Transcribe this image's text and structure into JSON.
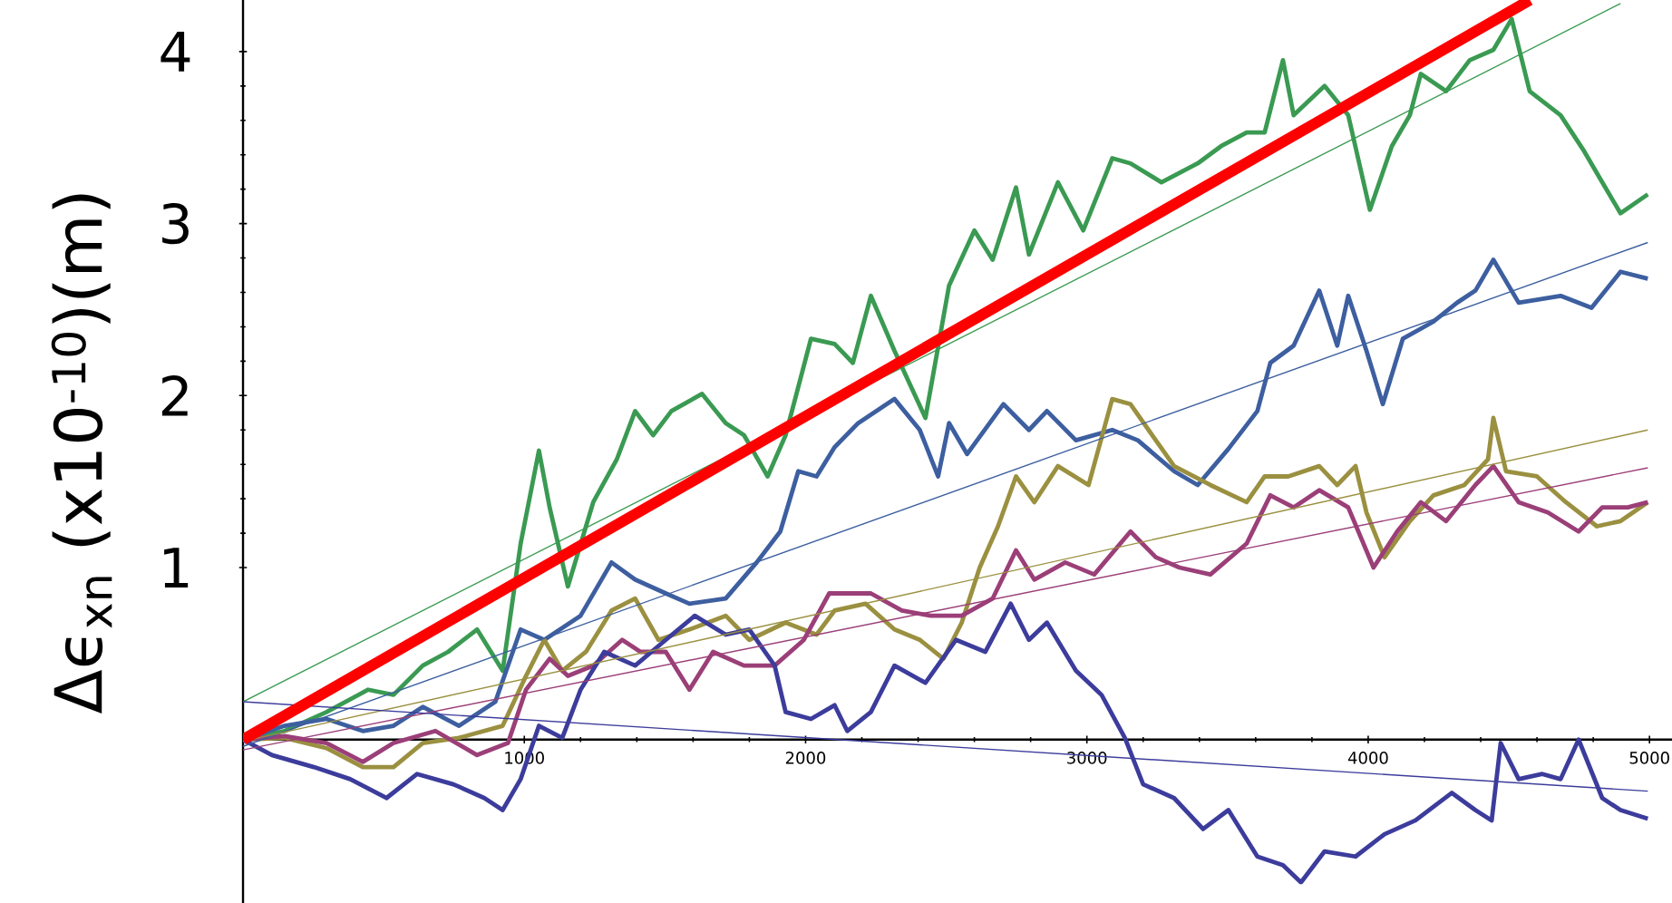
{
  "chart_data": {
    "type": "line",
    "ylabel": "Δϵ$_{xn}$ (x10$^{-10}$)(m)",
    "xlim": [
      0,
      5080
    ],
    "ylim": [
      -0.95,
      4.3
    ],
    "xticks": [
      1000,
      2000,
      3000,
      4000,
      5000
    ],
    "yticks": [
      1,
      2,
      3,
      4
    ],
    "marker": "none",
    "line_style": "solid",
    "series": [
      {
        "color": "#3a9a52",
        "x": [
          0,
          148,
          297,
          445,
          535,
          639,
          729,
          832,
          923,
          987,
          1052,
          1090,
          1155,
          1245,
          1329,
          1394,
          1458,
          1523,
          1632,
          1716,
          1781,
          1865,
          1929,
          2019,
          2103,
          2168,
          2232,
          2316,
          2426,
          2510,
          2600,
          2665,
          2748,
          2794,
          2897,
          2987,
          3090,
          3155,
          3265,
          3394,
          3477,
          3568,
          3632,
          3697,
          3735,
          3845,
          3929,
          4006,
          4084,
          4148,
          4187,
          4277,
          4361,
          4445,
          4510,
          4574,
          4684,
          4768,
          4832,
          4897,
          4994
        ],
        "values": [
          0,
          0.05,
          0.16,
          0.29,
          0.26,
          0.43,
          0.51,
          0.64,
          0.4,
          1.14,
          1.68,
          1.35,
          0.89,
          1.38,
          1.63,
          1.91,
          1.77,
          1.91,
          2.01,
          1.84,
          1.77,
          1.53,
          1.77,
          2.33,
          2.3,
          2.19,
          2.58,
          2.26,
          1.87,
          2.64,
          2.96,
          2.79,
          3.21,
          2.82,
          3.24,
          2.96,
          3.38,
          3.35,
          3.24,
          3.35,
          3.45,
          3.53,
          3.53,
          3.95,
          3.63,
          3.8,
          3.63,
          3.08,
          3.45,
          3.63,
          3.87,
          3.77,
          3.95,
          4.01,
          4.19,
          3.77,
          3.63,
          3.42,
          3.24,
          3.06,
          3.17
        ]
      },
      {
        "color": "#3d5fa0",
        "x": [
          0,
          148,
          297,
          426,
          535,
          639,
          768,
          897,
          987,
          1071,
          1200,
          1310,
          1394,
          1503,
          1587,
          1716,
          1826,
          1910,
          1974,
          2039,
          2103,
          2187,
          2316,
          2406,
          2471,
          2510,
          2574,
          2703,
          2794,
          2858,
          2961,
          3090,
          3181,
          3310,
          3394,
          3503,
          3606,
          3652,
          3735,
          3826,
          3890,
          3929,
          3994,
          4052,
          4123,
          4232,
          4316,
          4381,
          4445,
          4535,
          4684,
          4794,
          4897,
          4994
        ],
        "values": [
          0,
          0.08,
          0.12,
          0.05,
          0.08,
          0.19,
          0.08,
          0.22,
          0.64,
          0.58,
          0.72,
          1.03,
          0.93,
          0.85,
          0.79,
          0.82,
          1.03,
          1.21,
          1.56,
          1.53,
          1.7,
          1.84,
          1.98,
          1.8,
          1.53,
          1.84,
          1.66,
          1.95,
          1.8,
          1.91,
          1.74,
          1.8,
          1.74,
          1.56,
          1.48,
          1.69,
          1.91,
          2.19,
          2.29,
          2.61,
          2.29,
          2.58,
          2.26,
          1.95,
          2.33,
          2.43,
          2.54,
          2.61,
          2.79,
          2.54,
          2.58,
          2.51,
          2.72,
          2.68
        ]
      },
      {
        "color": "#9a9040",
        "x": [
          0,
          148,
          297,
          426,
          535,
          639,
          768,
          923,
          1006,
          1071,
          1135,
          1219,
          1310,
          1394,
          1477,
          1587,
          1716,
          1800,
          1929,
          2039,
          2103,
          2213,
          2316,
          2406,
          2490,
          2555,
          2619,
          2684,
          2748,
          2813,
          2897,
          3006,
          3090,
          3155,
          3245,
          3310,
          3439,
          3568,
          3632,
          3716,
          3826,
          3890,
          3955,
          3994,
          4058,
          4148,
          4232,
          4342,
          4426,
          4445,
          4490,
          4600,
          4703,
          4813,
          4897,
          4994
        ],
        "values": [
          0,
          0.01,
          -0.05,
          -0.16,
          -0.16,
          -0.02,
          0.01,
          0.08,
          0.37,
          0.58,
          0.4,
          0.51,
          0.75,
          0.82,
          0.58,
          0.64,
          0.72,
          0.58,
          0.68,
          0.61,
          0.75,
          0.79,
          0.64,
          0.58,
          0.47,
          0.68,
          1.0,
          1.24,
          1.53,
          1.38,
          1.59,
          1.48,
          1.98,
          1.95,
          1.74,
          1.59,
          1.48,
          1.38,
          1.53,
          1.53,
          1.59,
          1.48,
          1.59,
          1.32,
          1.06,
          1.27,
          1.42,
          1.48,
          1.63,
          1.87,
          1.56,
          1.53,
          1.38,
          1.24,
          1.27,
          1.38
        ]
      },
      {
        "color": "#9b3f78",
        "x": [
          0,
          148,
          297,
          426,
          535,
          684,
          832,
          942,
          1006,
          1090,
          1155,
          1245,
          1348,
          1413,
          1503,
          1587,
          1671,
          1781,
          1890,
          1994,
          2084,
          2232,
          2342,
          2445,
          2555,
          2665,
          2748,
          2813,
          2923,
          3026,
          3155,
          3245,
          3329,
          3439,
          3568,
          3652,
          3735,
          3826,
          3929,
          4019,
          4103,
          4187,
          4277,
          4381,
          4445,
          4535,
          4639,
          4748,
          4832,
          4923,
          4994
        ],
        "values": [
          0,
          0.02,
          -0.02,
          -0.13,
          -0.02,
          0.05,
          -0.09,
          -0.02,
          0.29,
          0.47,
          0.37,
          0.43,
          0.58,
          0.51,
          0.51,
          0.29,
          0.51,
          0.43,
          0.43,
          0.58,
          0.85,
          0.85,
          0.75,
          0.72,
          0.72,
          0.82,
          1.1,
          0.93,
          1.03,
          0.96,
          1.21,
          1.06,
          1.0,
          0.96,
          1.14,
          1.42,
          1.35,
          1.45,
          1.35,
          1.0,
          1.21,
          1.38,
          1.27,
          1.48,
          1.59,
          1.38,
          1.32,
          1.21,
          1.35,
          1.35,
          1.38
        ]
      },
      {
        "color": "#3c3c9c",
        "x": [
          0,
          103,
          252,
          381,
          510,
          619,
          748,
          858,
          923,
          987,
          1052,
          1135,
          1200,
          1284,
          1394,
          1503,
          1606,
          1716,
          1800,
          1890,
          1929,
          2019,
          2103,
          2148,
          2232,
          2316,
          2426,
          2535,
          2639,
          2729,
          2794,
          2858,
          2961,
          3052,
          3135,
          3200,
          3310,
          3413,
          3503,
          3606,
          3697,
          3761,
          3845,
          3955,
          4058,
          4168,
          4297,
          4381,
          4439,
          4471,
          4535,
          4619,
          4684,
          4748,
          4832,
          4897,
          4994
        ],
        "values": [
          0,
          -0.09,
          -0.16,
          -0.23,
          -0.34,
          -0.2,
          -0.26,
          -0.34,
          -0.41,
          -0.23,
          0.08,
          0.01,
          0.29,
          0.51,
          0.43,
          0.58,
          0.72,
          0.61,
          0.64,
          0.43,
          0.16,
          0.12,
          0.2,
          0.05,
          0.16,
          0.43,
          0.33,
          0.58,
          0.51,
          0.79,
          0.58,
          0.68,
          0.4,
          0.26,
          0.01,
          -0.26,
          -0.34,
          -0.52,
          -0.41,
          -0.68,
          -0.73,
          -0.83,
          -0.65,
          -0.68,
          -0.55,
          -0.47,
          -0.31,
          -0.41,
          -0.47,
          -0.02,
          -0.23,
          -0.2,
          -0.23,
          0.0,
          -0.34,
          -0.41,
          -0.46
        ]
      },
      {
        "color": "#3a9a52",
        "x": [
          0,
          4897
        ],
        "values": [
          0.22,
          4.28
        ]
      },
      {
        "color": "#3d5fa0",
        "x": [
          0,
          4994
        ],
        "values": [
          -0.04,
          2.89
        ]
      },
      {
        "color": "#9a9040",
        "x": [
          0,
          4994
        ],
        "values": [
          -0.01,
          1.8
        ]
      },
      {
        "color": "#9b3f78",
        "x": [
          0,
          4994
        ],
        "values": [
          -0.06,
          1.58
        ]
      },
      {
        "color": "#3c3c9c",
        "x": [
          0,
          4994
        ],
        "values": [
          0.22,
          -0.3
        ]
      },
      {
        "color": "#ff0000",
        "x": [
          0,
          2287,
          4575
        ],
        "values": [
          0,
          2.15,
          4.3
        ]
      }
    ]
  }
}
